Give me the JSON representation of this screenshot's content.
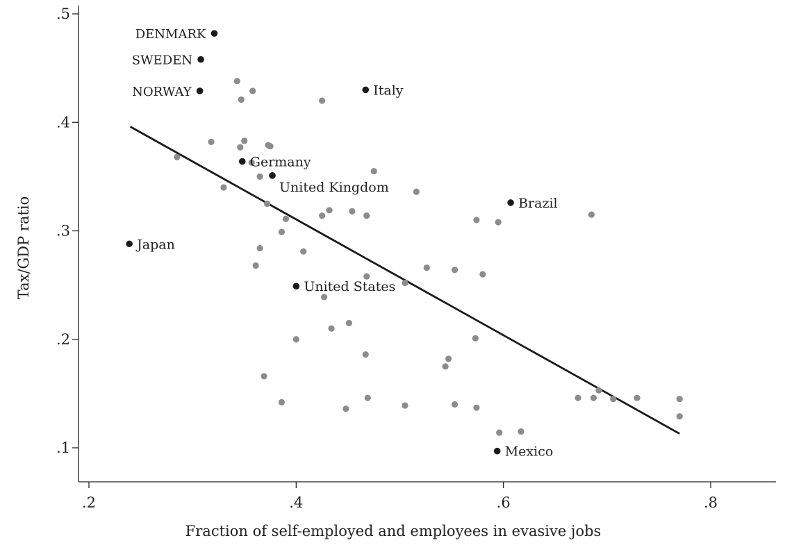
{
  "chart_data": {
    "type": "scatter",
    "xlabel": "Fraction of self-employed and employees in evasive jobs",
    "ylabel": "Tax/GDP ratio",
    "xlim": [
      0.2,
      0.8
    ],
    "ylim": [
      0.1,
      0.5
    ],
    "x_ticks": [
      {
        "value": 0.2,
        "label": ".2"
      },
      {
        "value": 0.4,
        "label": ".4"
      },
      {
        "value": 0.6,
        "label": ".6"
      },
      {
        "value": 0.8,
        "label": ".8"
      }
    ],
    "y_ticks": [
      {
        "value": 0.1,
        "label": ".1"
      },
      {
        "value": 0.2,
        "label": ".2"
      },
      {
        "value": 0.3,
        "label": ".3"
      },
      {
        "value": 0.4,
        "label": ".4"
      },
      {
        "value": 0.5,
        "label": ".5"
      }
    ],
    "fit_line": {
      "x": [
        0.24,
        0.77
      ],
      "y": [
        0.396,
        0.113
      ]
    },
    "labeled_points": [
      {
        "label": "DENMARK",
        "x": 0.321,
        "y": 0.482,
        "label_side": "left"
      },
      {
        "label": "SWEDEN",
        "x": 0.308,
        "y": 0.458,
        "label_side": "left"
      },
      {
        "label": "NORWAY",
        "x": 0.307,
        "y": 0.429,
        "label_side": "left"
      },
      {
        "label": "Italy",
        "x": 0.467,
        "y": 0.43,
        "label_side": "right"
      },
      {
        "label": "Germany",
        "x": 0.348,
        "y": 0.364,
        "label_side": "right"
      },
      {
        "label": "United Kingdom",
        "x": 0.377,
        "y": 0.351,
        "label_side": "below-right"
      },
      {
        "label": "Brazil",
        "x": 0.607,
        "y": 0.326,
        "label_side": "right"
      },
      {
        "label": "Japan",
        "x": 0.239,
        "y": 0.288,
        "label_side": "right"
      },
      {
        "label": "United States",
        "x": 0.4,
        "y": 0.249,
        "label_side": "right"
      },
      {
        "label": "Mexico",
        "x": 0.594,
        "y": 0.097,
        "label_side": "right"
      }
    ],
    "other_points": [
      {
        "x": 0.343,
        "y": 0.438
      },
      {
        "x": 0.358,
        "y": 0.429
      },
      {
        "x": 0.347,
        "y": 0.421
      },
      {
        "x": 0.425,
        "y": 0.42
      },
      {
        "x": 0.318,
        "y": 0.382
      },
      {
        "x": 0.35,
        "y": 0.383
      },
      {
        "x": 0.346,
        "y": 0.377
      },
      {
        "x": 0.373,
        "y": 0.379
      },
      {
        "x": 0.375,
        "y": 0.378
      },
      {
        "x": 0.285,
        "y": 0.368
      },
      {
        "x": 0.357,
        "y": 0.363
      },
      {
        "x": 0.475,
        "y": 0.355
      },
      {
        "x": 0.365,
        "y": 0.35
      },
      {
        "x": 0.33,
        "y": 0.34
      },
      {
        "x": 0.516,
        "y": 0.336
      },
      {
        "x": 0.372,
        "y": 0.325
      },
      {
        "x": 0.432,
        "y": 0.319
      },
      {
        "x": 0.454,
        "y": 0.318
      },
      {
        "x": 0.425,
        "y": 0.314
      },
      {
        "x": 0.468,
        "y": 0.314
      },
      {
        "x": 0.39,
        "y": 0.311
      },
      {
        "x": 0.574,
        "y": 0.31
      },
      {
        "x": 0.595,
        "y": 0.308
      },
      {
        "x": 0.685,
        "y": 0.315
      },
      {
        "x": 0.386,
        "y": 0.299
      },
      {
        "x": 0.365,
        "y": 0.284
      },
      {
        "x": 0.407,
        "y": 0.281
      },
      {
        "x": 0.361,
        "y": 0.268
      },
      {
        "x": 0.526,
        "y": 0.266
      },
      {
        "x": 0.553,
        "y": 0.264
      },
      {
        "x": 0.58,
        "y": 0.26
      },
      {
        "x": 0.468,
        "y": 0.258
      },
      {
        "x": 0.505,
        "y": 0.252
      },
      {
        "x": 0.427,
        "y": 0.239
      },
      {
        "x": 0.451,
        "y": 0.215
      },
      {
        "x": 0.434,
        "y": 0.21
      },
      {
        "x": 0.4,
        "y": 0.2
      },
      {
        "x": 0.573,
        "y": 0.201
      },
      {
        "x": 0.467,
        "y": 0.186
      },
      {
        "x": 0.547,
        "y": 0.182
      },
      {
        "x": 0.544,
        "y": 0.175
      },
      {
        "x": 0.369,
        "y": 0.166
      },
      {
        "x": 0.692,
        "y": 0.153
      },
      {
        "x": 0.672,
        "y": 0.146
      },
      {
        "x": 0.687,
        "y": 0.146
      },
      {
        "x": 0.706,
        "y": 0.145
      },
      {
        "x": 0.729,
        "y": 0.146
      },
      {
        "x": 0.77,
        "y": 0.145
      },
      {
        "x": 0.469,
        "y": 0.146
      },
      {
        "x": 0.386,
        "y": 0.142
      },
      {
        "x": 0.505,
        "y": 0.139
      },
      {
        "x": 0.553,
        "y": 0.14
      },
      {
        "x": 0.574,
        "y": 0.137
      },
      {
        "x": 0.448,
        "y": 0.136
      },
      {
        "x": 0.77,
        "y": 0.129
      },
      {
        "x": 0.617,
        "y": 0.115
      },
      {
        "x": 0.596,
        "y": 0.114
      }
    ],
    "colors": {
      "labeled_point": "#1a1a1a",
      "other_point": "#8c8c8c",
      "fit_line": "#1a1a1a",
      "axis": "#222222"
    },
    "grid": false
  }
}
